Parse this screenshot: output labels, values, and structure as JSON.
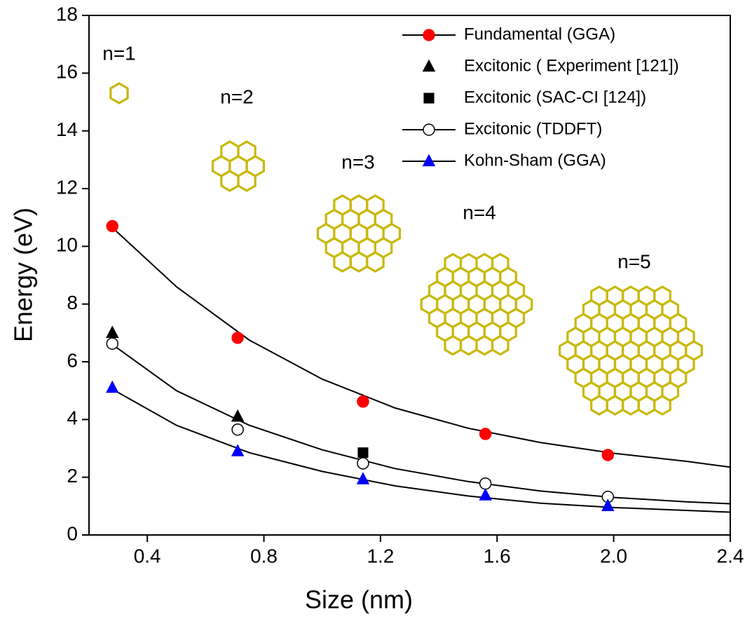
{
  "chart_data": {
    "type": "scatter",
    "xlabel": "Size (nm)",
    "ylabel": "Energy (eV)",
    "xlim": [
      0.2,
      2.4
    ],
    "ylim": [
      0,
      18
    ],
    "xticks": [
      0.4,
      0.8,
      1.2,
      1.6,
      {
        "value": 2,
        "label": "2.0"
      },
      2.4
    ],
    "yticks": [
      0,
      2,
      4,
      6,
      8,
      10,
      12,
      14,
      16,
      18
    ],
    "legend": "upper right",
    "annotations": [
      "n=1",
      "n=2",
      "n=3",
      "n=4",
      "n=5"
    ],
    "fit_x": [
      0.28,
      0.5,
      0.75,
      1.0,
      1.25,
      1.5,
      1.75,
      2.0,
      2.25,
      2.4
    ],
    "series": [
      {
        "name": "Fundamental (GGA)",
        "color": "#ff0000",
        "marker": "circle",
        "x": [
          0.28,
          0.71,
          1.14,
          1.56,
          1.98
        ],
        "values": [
          10.7,
          6.83,
          4.62,
          3.5,
          2.77
        ],
        "fit": [
          10.65,
          8.6,
          6.75,
          5.4,
          4.4,
          3.7,
          3.2,
          2.83,
          2.55,
          2.35
        ]
      },
      {
        "name": "Excitonic ( Experiment [121])",
        "color": "#000000",
        "marker": "triangle",
        "x": [
          0.28,
          0.71
        ],
        "values": [
          7.0,
          4.1
        ]
      },
      {
        "name": "Excitonic (SAC-CI [124])",
        "color": "#000000",
        "marker": "square",
        "x": [
          1.14
        ],
        "values": [
          2.85
        ]
      },
      {
        "name": "Excitonic (TDDFT)",
        "color": "#ffffff",
        "marker": "circle",
        "x": [
          0.28,
          0.71,
          1.14,
          1.56,
          1.98
        ],
        "values": [
          6.63,
          3.65,
          2.48,
          1.78,
          1.32
        ],
        "fit": [
          6.6,
          5.0,
          3.8,
          2.95,
          2.3,
          1.85,
          1.52,
          1.3,
          1.15,
          1.08
        ]
      },
      {
        "name": "Kohn-Sham (GGA)",
        "color": "#0000ff",
        "marker": "triangle",
        "x": [
          0.28,
          0.71,
          1.14,
          1.56,
          1.98
        ],
        "values": [
          5.1,
          2.9,
          1.93,
          1.37,
          1.0
        ],
        "fit": [
          5.05,
          3.8,
          2.85,
          2.2,
          1.7,
          1.35,
          1.1,
          0.95,
          0.85,
          0.79
        ]
      }
    ]
  }
}
